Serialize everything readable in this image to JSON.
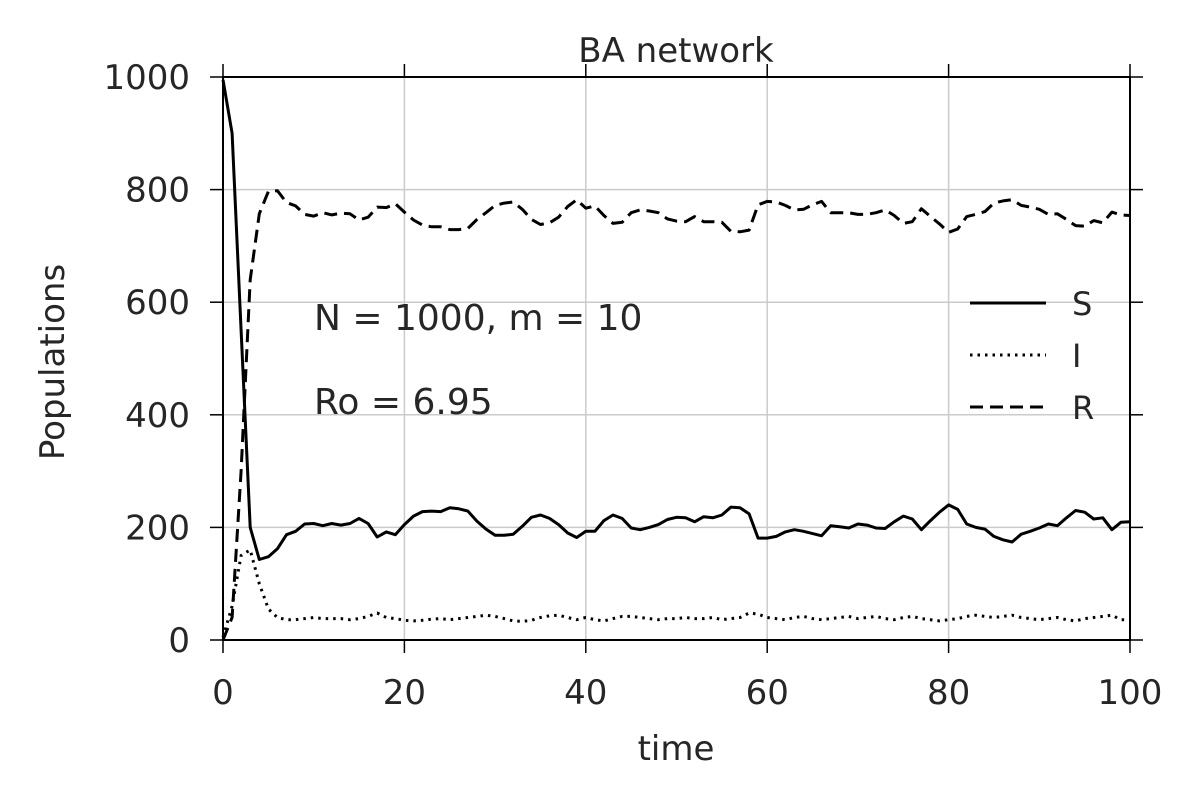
{
  "chart_data": {
    "type": "line",
    "title": "BA network",
    "xlabel": "time",
    "ylabel": "Populations",
    "xlim": [
      0,
      100
    ],
    "ylim": [
      0,
      1000
    ],
    "x_ticks": [
      0,
      20,
      40,
      60,
      80,
      100
    ],
    "y_ticks": [
      0,
      200,
      400,
      600,
      800,
      1000
    ],
    "grid": true,
    "legend_position": "right",
    "annotations": [
      "N = 1000, m = 10",
      "Ro = 6.95"
    ],
    "series": [
      {
        "name": "S",
        "style": "solid",
        "color": "#000000",
        "x": [
          0,
          1,
          2,
          3,
          4,
          5,
          6,
          7,
          8,
          9,
          10,
          11,
          12,
          13,
          14,
          15,
          16,
          17,
          18,
          19,
          20,
          21,
          22,
          23,
          24,
          25,
          26,
          27,
          28,
          29,
          30,
          31,
          32,
          33,
          34,
          35,
          36,
          37,
          38,
          39,
          40,
          41,
          42,
          43,
          44,
          45,
          46,
          47,
          48,
          49,
          50,
          51,
          52,
          53,
          54,
          55,
          56,
          57,
          58,
          59,
          60,
          61,
          62,
          63,
          64,
          65,
          66,
          67,
          68,
          69,
          70,
          71,
          72,
          73,
          74,
          75,
          76,
          77,
          78,
          79,
          80,
          81,
          82,
          83,
          84,
          85,
          86,
          87,
          88,
          89,
          90,
          91,
          92,
          93,
          94,
          95,
          96,
          97,
          98,
          99,
          100
        ],
        "y": [
          995,
          900,
          550,
          200,
          143,
          148,
          162,
          187,
          193,
          206,
          207,
          203,
          207,
          204,
          207,
          216,
          207,
          183,
          192,
          187,
          205,
          220,
          228,
          229,
          228,
          235,
          233,
          229,
          211,
          197,
          186,
          186,
          188,
          202,
          218,
          222,
          216,
          205,
          190,
          182,
          193,
          193,
          212,
          222,
          216,
          199,
          196,
          200,
          205,
          214,
          218,
          217,
          210,
          219,
          217,
          222,
          236,
          235,
          224,
          181,
          181,
          184,
          192,
          196,
          193,
          189,
          185,
          203,
          201,
          199,
          206,
          204,
          199,
          198,
          210,
          220,
          215,
          196,
          212,
          227,
          240,
          232,
          206,
          200,
          197,
          184,
          178,
          174,
          188,
          193,
          199,
          206,
          203,
          217,
          230,
          227,
          215,
          217,
          196,
          209,
          210
        ]
      },
      {
        "name": "I",
        "style": "dotted",
        "color": "#000000",
        "x": [
          0,
          1,
          2,
          3,
          4,
          5,
          6,
          7,
          8,
          9,
          10,
          11,
          12,
          13,
          14,
          15,
          16,
          17,
          18,
          19,
          20,
          21,
          22,
          23,
          24,
          25,
          26,
          27,
          28,
          29,
          30,
          31,
          32,
          33,
          34,
          35,
          36,
          37,
          38,
          39,
          40,
          41,
          42,
          43,
          44,
          45,
          46,
          47,
          48,
          49,
          50,
          51,
          52,
          53,
          54,
          55,
          56,
          57,
          58,
          59,
          60,
          61,
          62,
          63,
          64,
          65,
          66,
          67,
          68,
          69,
          70,
          71,
          72,
          73,
          74,
          75,
          76,
          77,
          78,
          79,
          80,
          81,
          82,
          83,
          84,
          85,
          86,
          87,
          88,
          89,
          90,
          91,
          92,
          93,
          94,
          95,
          96,
          97,
          98,
          99,
          100
        ],
        "y": [
          5,
          60,
          150,
          160,
          100,
          55,
          40,
          36,
          36,
          38,
          40,
          38,
          38,
          38,
          36,
          38,
          42,
          48,
          40,
          38,
          35,
          34,
          35,
          37,
          38,
          36,
          38,
          40,
          42,
          44,
          42,
          38,
          34,
          33,
          35,
          40,
          43,
          44,
          40,
          36,
          40,
          36,
          34,
          38,
          42,
          42,
          40,
          38,
          36,
          38,
          38,
          40,
          38,
          38,
          40,
          36,
          38,
          40,
          48,
          46,
          40,
          38,
          36,
          40,
          42,
          38,
          36,
          38,
          40,
          42,
          38,
          40,
          42,
          38,
          36,
          40,
          42,
          38,
          36,
          34,
          36,
          38,
          42,
          44,
          42,
          40,
          42,
          44,
          40,
          38,
          36,
          38,
          40,
          36,
          34,
          38,
          40,
          42,
          44,
          36,
          36
        ]
      },
      {
        "name": "R",
        "style": "dashed",
        "color": "#000000",
        "x": [
          0,
          1,
          2,
          3,
          4,
          5,
          6,
          7,
          8,
          9,
          10,
          11,
          12,
          13,
          14,
          15,
          16,
          17,
          18,
          19,
          20,
          21,
          22,
          23,
          24,
          25,
          26,
          27,
          28,
          29,
          30,
          31,
          32,
          33,
          34,
          35,
          36,
          37,
          38,
          39,
          40,
          41,
          42,
          43,
          44,
          45,
          46,
          47,
          48,
          49,
          50,
          51,
          52,
          53,
          54,
          55,
          56,
          57,
          58,
          59,
          60,
          61,
          62,
          63,
          64,
          65,
          66,
          67,
          68,
          69,
          70,
          71,
          72,
          73,
          74,
          75,
          76,
          77,
          78,
          79,
          80,
          81,
          82,
          83,
          84,
          85,
          86,
          87,
          88,
          89,
          90,
          91,
          92,
          93,
          94,
          95,
          96,
          97,
          98,
          99,
          100
        ],
        "y": [
          0,
          40,
          300,
          640,
          757,
          797,
          798,
          777,
          771,
          756,
          753,
          759,
          755,
          758,
          757,
          746,
          751,
          769,
          768,
          775,
          760,
          746,
          737,
          734,
          734,
          729,
          729,
          731,
          747,
          759,
          772,
          776,
          778,
          765,
          747,
          738,
          741,
          751,
          770,
          782,
          767,
          771,
          754,
          740,
          742,
          759,
          764,
          762,
          759,
          748,
          744,
          743,
          752,
          743,
          743,
          742,
          726,
          725,
          728,
          773,
          779,
          778,
          772,
          764,
          765,
          773,
          779,
          759,
          759,
          759,
          756,
          756,
          759,
          764,
          754,
          740,
          743,
          766,
          752,
          739,
          724,
          730,
          752,
          756,
          761,
          776,
          780,
          782,
          772,
          769,
          765,
          756,
          757,
          747,
          736,
          735,
          745,
          741,
          760,
          755,
          754
        ]
      }
    ]
  }
}
